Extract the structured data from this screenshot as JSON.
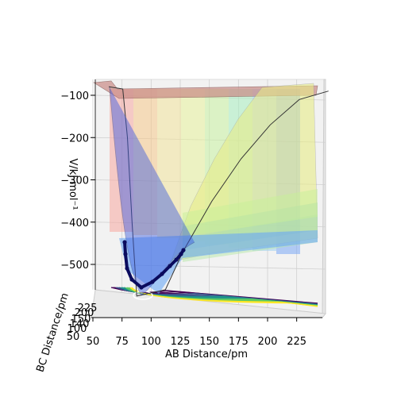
{
  "chart_data": {
    "type": "surface3d",
    "title": "",
    "xlabel": "AB Distance/pm",
    "ylabel": "BC Distance/pm",
    "zlabel": "V/kJ·mol⁻¹",
    "x_ticks": [
      "50",
      "75",
      "100",
      "125",
      "150",
      "175",
      "200",
      "225"
    ],
    "y_ticks": [
      "50",
      "100",
      "140",
      "150",
      "200",
      "225"
    ],
    "z_ticks": [
      "−100",
      "−200",
      "−300",
      "−400",
      "−500"
    ],
    "xlim": [
      50,
      245
    ],
    "zlim": [
      -590,
      -80
    ],
    "surface_colormap": "jet",
    "contour_colormap": "viridis",
    "trajectory_color": "#0b0b5e",
    "min_energy_well": {
      "x": 74,
      "z": -575
    },
    "surface_profile": [
      {
        "x": 50,
        "z": -80
      },
      {
        "x": 62,
        "z": -85
      },
      {
        "x": 66,
        "z": -200
      },
      {
        "x": 70,
        "z": -400
      },
      {
        "x": 74,
        "z": -575
      },
      {
        "x": 85,
        "z": -560
      },
      {
        "x": 100,
        "z": -470
      },
      {
        "x": 125,
        "z": -350
      },
      {
        "x": 150,
        "z": -250
      },
      {
        "x": 175,
        "z": -170
      },
      {
        "x": 200,
        "z": -110
      },
      {
        "x": 225,
        "z": -90
      }
    ],
    "trajectory": [
      {
        "x": 83,
        "z": -435
      },
      {
        "x": 84,
        "z": -480
      },
      {
        "x": 86,
        "z": -525
      },
      {
        "x": 89,
        "z": -555
      },
      {
        "x": 94,
        "z": -570
      },
      {
        "x": 100,
        "z": -560
      },
      {
        "x": 106,
        "z": -540
      },
      {
        "x": 112,
        "z": -520
      },
      {
        "x": 118,
        "z": -505
      },
      {
        "x": 124,
        "z": -495
      },
      {
        "x": 128,
        "z": -490
      }
    ]
  }
}
